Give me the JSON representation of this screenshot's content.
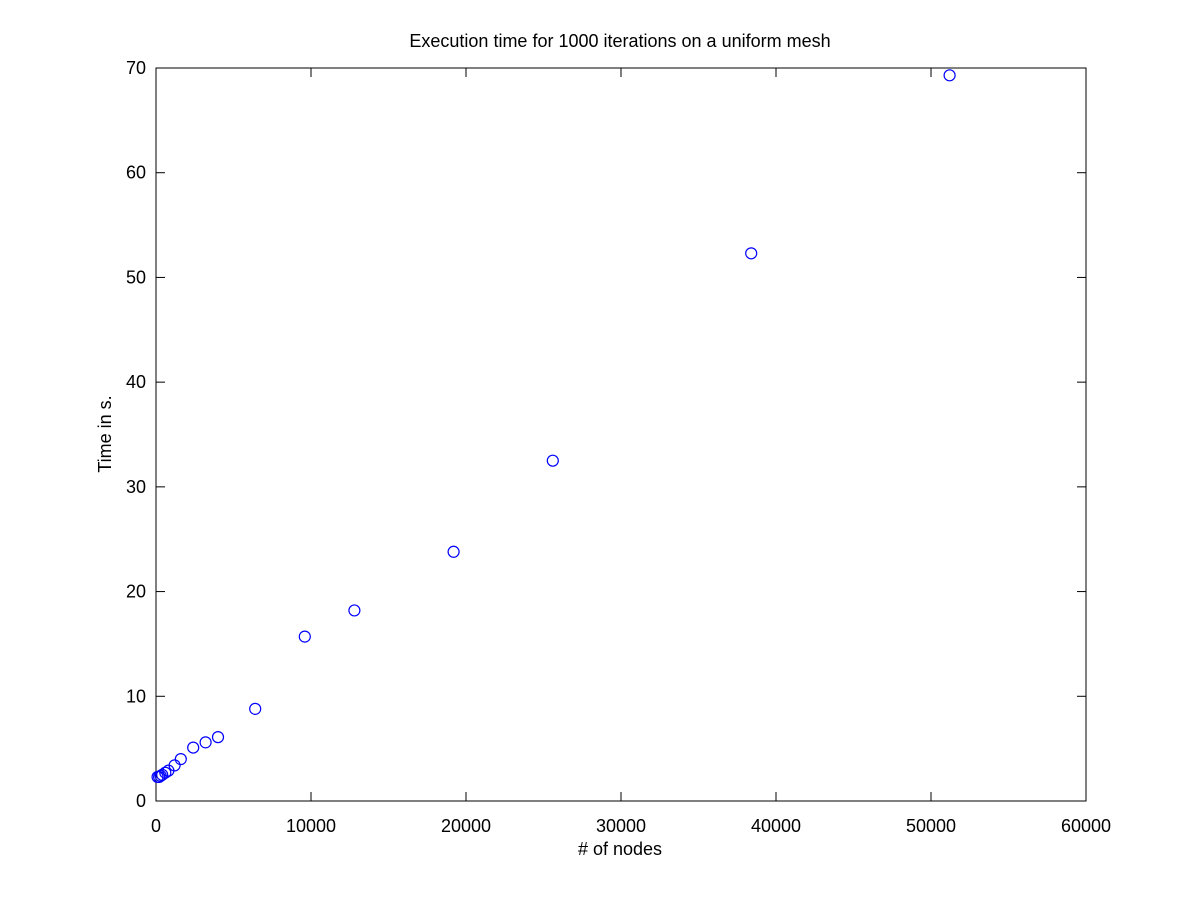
{
  "chart_data": {
    "type": "scatter",
    "title": "Execution time for 1000 iterations on a uniform mesh",
    "xlabel": "# of nodes",
    "ylabel": "Time in s.",
    "xlim": [
      0,
      60000
    ],
    "ylim": [
      0,
      70
    ],
    "xticks": [
      0,
      10000,
      20000,
      30000,
      40000,
      50000,
      60000
    ],
    "xtick_labels": [
      "0",
      "10000",
      "20000",
      "30000",
      "40000",
      "50000",
      "60000"
    ],
    "yticks": [
      0,
      10,
      20,
      30,
      40,
      50,
      60,
      70
    ],
    "ytick_labels": [
      "0",
      "10",
      "20",
      "30",
      "40",
      "50",
      "60",
      "70"
    ],
    "grid": false,
    "legend": false,
    "marker": "open-circle",
    "marker_color": "#0000ff",
    "series": [
      {
        "x": [
          100,
          200,
          300,
          400,
          600,
          800,
          1200,
          1600,
          2400,
          3200,
          4000,
          6400,
          9600,
          12800,
          19200,
          25600,
          38400,
          51200
        ],
        "y": [
          2.3,
          2.3,
          2.4,
          2.5,
          2.7,
          2.9,
          3.4,
          4.0,
          5.1,
          5.6,
          6.1,
          8.8,
          15.7,
          18.2,
          23.8,
          32.5,
          52.3,
          69.3
        ]
      }
    ]
  }
}
